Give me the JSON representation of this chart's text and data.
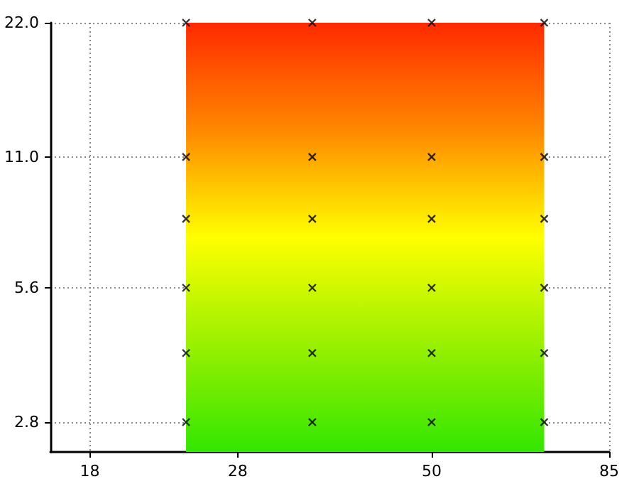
{
  "chart_data": {
    "type": "scatter",
    "x": [
      24,
      24,
      24,
      24,
      24,
      24,
      35,
      35,
      35,
      35,
      35,
      35,
      50,
      50,
      50,
      50,
      50,
      50,
      70,
      70,
      70,
      70,
      70,
      70
    ],
    "values": [
      2.8,
      4,
      5.6,
      8,
      11,
      22,
      2.8,
      4,
      5.6,
      8,
      11,
      22,
      2.8,
      4,
      5.6,
      8,
      11,
      22,
      2.8,
      4,
      5.6,
      8,
      11,
      22
    ],
    "color": "#000000",
    "marker": "cross",
    "log": "xy",
    "grid": true,
    "xlim": [
      16,
      85
    ],
    "xticks": [
      18,
      28,
      50,
      85
    ],
    "ylim": [
      2.4,
      22
    ],
    "yticks": [
      2.8,
      5.6,
      {
        "value": 11,
        "label": "11.0"
      },
      {
        "value": 22,
        "label": "22.0"
      }
    ],
    "bands": [
      {
        "axis": "x",
        "from": 24,
        "to": 70,
        "color": [
          "#ff2a00",
          "#ff8800",
          "#ffff00",
          "#99f000",
          "#33e600"
        ]
      }
    ]
  }
}
